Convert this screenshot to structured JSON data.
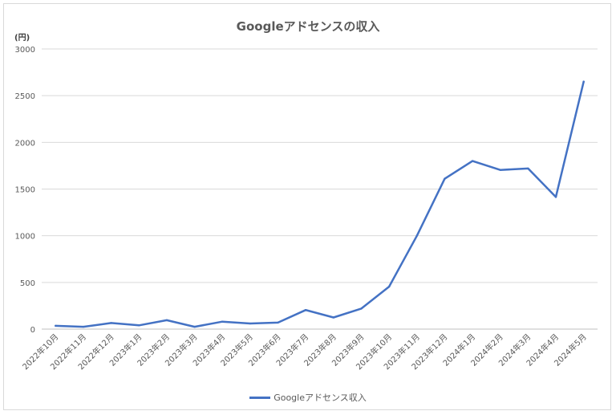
{
  "chart_data": {
    "type": "line",
    "title": "Googleアドセンスの収入",
    "ylabel": "(円)",
    "xlabel": "",
    "ylim": [
      0,
      3000
    ],
    "yticks": [
      0,
      500,
      1000,
      1500,
      2000,
      2500,
      3000
    ],
    "grid": true,
    "legend_position": "bottom",
    "categories": [
      "2022年10月",
      "2022年11月",
      "2022年12月",
      "2023年1月",
      "2023年2月",
      "2023年3月",
      "2023年4月",
      "2023年5月",
      "2023年6月",
      "2023年7月",
      "2023年8月",
      "2023年9月",
      "2023年10月",
      "2023年11月",
      "2023年12月",
      "2024年1月",
      "2024年2月",
      "2024年3月",
      "2024年4月",
      "2024年5月"
    ],
    "series": [
      {
        "name": "Googleアドセンス収入",
        "color": "#4472c4",
        "values": [
          35,
          25,
          65,
          40,
          95,
          25,
          80,
          60,
          70,
          205,
          125,
          220,
          455,
          1000,
          1610,
          1800,
          1705,
          1720,
          1415,
          2650
        ]
      }
    ]
  }
}
